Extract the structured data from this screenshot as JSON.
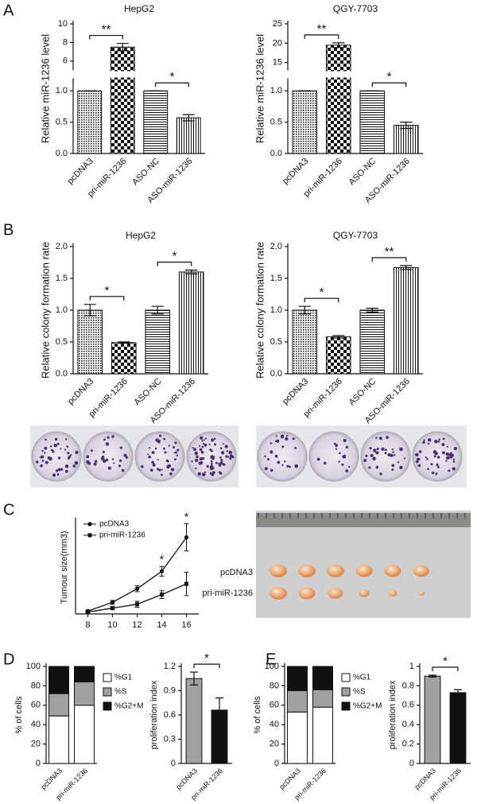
{
  "panel_labels": [
    "A",
    "B",
    "C",
    "D",
    "E"
  ],
  "photo_labels": [
    "pcDNA3",
    "pri-miR-1236"
  ],
  "chart_data": [
    {
      "type": "bar",
      "title": "HepG2",
      "y_label": "Relative miR-1236 level",
      "categories": [
        "pcDNA3",
        "pri-miR-1236",
        "ASO-NC",
        "ASO-miR-1236"
      ],
      "values": [
        1.0,
        7.5,
        1.0,
        0.57
      ],
      "errors": [
        0,
        0.4,
        0,
        0.05
      ],
      "patterns": [
        "dots",
        "checker",
        "hlines",
        "vlines"
      ],
      "ylim": [
        0,
        10
      ],
      "axis_break": [
        1.2,
        5
      ],
      "yticks": [
        {
          "value": 0,
          "label": "0.0"
        },
        {
          "value": 0.5,
          "label": "0.5"
        },
        {
          "value": 1,
          "label": "1.0"
        },
        6,
        8,
        10
      ],
      "annotations": [
        "**",
        "*"
      ]
    },
    {
      "type": "bar",
      "title": "QGY-7703",
      "y_label": "Relative miR-1236 level",
      "categories": [
        "pcDNA3",
        "pri-miR-1236",
        "ASO-NC",
        "ASO-miR-1236"
      ],
      "values": [
        1.0,
        19.5,
        1.0,
        0.45
      ],
      "errors": [
        0,
        0.6,
        0,
        0.05
      ],
      "patterns": [
        "dots",
        "checker",
        "hlines",
        "vlines"
      ],
      "ylim": [
        0,
        25
      ],
      "axis_break": [
        1.2,
        13
      ],
      "yticks": [
        {
          "value": 0,
          "label": "0.0"
        },
        {
          "value": 0.5,
          "label": "0.5"
        },
        {
          "value": 1,
          "label": "1.0"
        },
        15,
        20,
        25
      ],
      "annotations": [
        "**",
        "*"
      ]
    },
    {
      "type": "bar",
      "title": "HepG2",
      "y_label": "Relative colony formation rate",
      "categories": [
        "pcDNA3",
        "pri-miR-1236",
        "ASO-NC",
        "ASO-miR-1236"
      ],
      "values": [
        1.0,
        0.49,
        1.0,
        1.6
      ],
      "errors": [
        0.09,
        0.01,
        0.06,
        0.03
      ],
      "patterns": [
        "dots",
        "checker",
        "hlines",
        "vlines"
      ],
      "ylim": [
        0,
        2
      ],
      "yticks": [
        {
          "value": 0,
          "label": "0.0"
        },
        {
          "value": 0.5,
          "label": "0.5"
        },
        {
          "value": 1,
          "label": "1.0"
        },
        {
          "value": 1.5,
          "label": "1.5"
        },
        {
          "value": 2,
          "label": "2.0"
        }
      ],
      "annotations": [
        "*",
        "*"
      ]
    },
    {
      "type": "bar",
      "title": "QGY-7703",
      "y_label": "Relative colony formation rate",
      "categories": [
        "pcDNA3",
        "pri-miR-1236",
        "ASO-NC",
        "ASO-miR-1236"
      ],
      "values": [
        1.0,
        0.58,
        1.0,
        1.67
      ],
      "errors": [
        0.06,
        0.02,
        0.03,
        0.03
      ],
      "patterns": [
        "dots",
        "checker",
        "hlines",
        "vlines"
      ],
      "ylim": [
        0,
        2
      ],
      "yticks": [
        {
          "value": 0,
          "label": "0.0"
        },
        {
          "value": 0.5,
          "label": "0.5"
        },
        {
          "value": 1,
          "label": "1.0"
        },
        {
          "value": 1.5,
          "label": "1.5"
        },
        {
          "value": 2,
          "label": "2.0"
        }
      ],
      "annotations": [
        "*",
        "**"
      ]
    },
    {
      "type": "line",
      "y_label": "Tumour size(mm3)",
      "x": [
        8,
        10,
        12,
        14,
        16
      ],
      "xlim": [
        7,
        17
      ],
      "xticks": [
        8,
        10,
        12,
        14,
        16
      ],
      "ylim": [
        0,
        480
      ],
      "series": [
        {
          "name": "pcDNA3",
          "marker": "circle",
          "color": "#111111",
          "values": [
            15,
            60,
            130,
            220,
            395
          ],
          "errors": [
            5,
            10,
            15,
            25,
            70
          ]
        },
        {
          "name": "pri-miR-1236",
          "marker": "square",
          "color": "#111111",
          "values": [
            10,
            30,
            50,
            100,
            155
          ],
          "errors": [
            3,
            8,
            15,
            20,
            60
          ]
        }
      ],
      "annotations": [
        "*",
        "*"
      ]
    },
    {
      "type": "stacked_bar",
      "y_label": "% of cells",
      "categories": [
        "pcDNA3",
        "pri-miR-1236"
      ],
      "series": [
        {
          "name": "%G1",
          "color": "#ffffff",
          "values": [
            49,
            60
          ]
        },
        {
          "name": "%S",
          "color": "#a0a0a0",
          "values": [
            23,
            24
          ]
        },
        {
          "name": "%G2+M",
          "color": "#111111",
          "values": [
            28,
            16
          ]
        }
      ],
      "ylim": [
        0,
        100
      ],
      "yticks": [
        0,
        20,
        40,
        60,
        80,
        100
      ]
    },
    {
      "type": "bar",
      "y_label": "proliferation index",
      "categories": [
        "pcDNA3",
        "pri-miR-1236"
      ],
      "values": [
        1.05,
        0.66
      ],
      "errors": [
        0.08,
        0.15
      ],
      "colors": [
        "#a0a0a0",
        "#111111"
      ],
      "ylim": [
        0,
        1.2
      ],
      "yticks": [
        0,
        0.3,
        0.6,
        0.9,
        1.2
      ],
      "annotations": [
        "*"
      ]
    },
    {
      "type": "stacked_bar",
      "y_label": "% of cells",
      "categories": [
        "pcDNA3",
        "pri-miR-1236"
      ],
      "series": [
        {
          "name": "%G1",
          "color": "#ffffff",
          "values": [
            53,
            58
          ]
        },
        {
          "name": "%S",
          "color": "#a0a0a0",
          "values": [
            22,
            18
          ]
        },
        {
          "name": "%G2+M",
          "color": "#111111",
          "values": [
            25,
            24
          ]
        }
      ],
      "ylim": [
        0,
        100
      ],
      "yticks": [
        0,
        20,
        40,
        60,
        80,
        100
      ]
    },
    {
      "type": "bar",
      "y_label": "proliferation index",
      "categories": [
        "pcDNA3",
        "pri-miR-1236"
      ],
      "values": [
        0.9,
        0.73
      ],
      "errors": [
        0.01,
        0.03
      ],
      "colors": [
        "#a0a0a0",
        "#111111"
      ],
      "ylim": [
        0,
        1.0
      ],
      "yticks": [
        0,
        0.2,
        0.4,
        0.6,
        0.8,
        1
      ],
      "annotations": [
        "*"
      ]
    }
  ]
}
